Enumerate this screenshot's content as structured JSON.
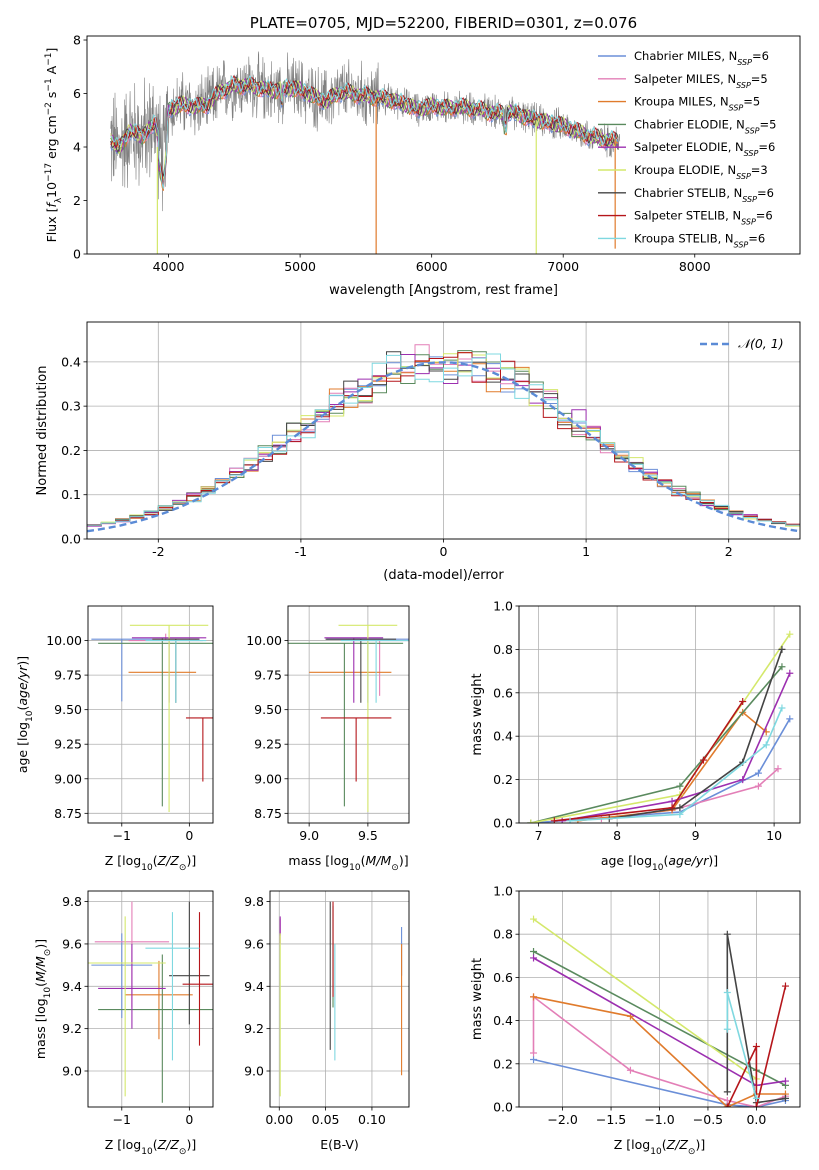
{
  "chart_data": [
    {
      "type": "line",
      "id": "spectrum",
      "title": "PLATE=0705, MJD=52200, FIBERID=0301, z=0.076",
      "xlabel": "wavelength [Angstrom, rest frame]",
      "ylabel": "Flux [f_λ 10^-17 erg cm^-2 s^-1 A^-1]",
      "ylabel_parts": [
        "Flux [",
        {
          "t": "f",
          "i": 1
        },
        {
          "t": "λ",
          "sub": 1
        },
        "10",
        {
          "t": "−17",
          "sup": 1
        },
        " erg cm",
        {
          "t": "−2",
          "sup": 1
        },
        " s",
        {
          "t": "−1",
          "sup": 1
        },
        " A",
        {
          "t": "−1",
          "sup": 1
        },
        "]"
      ],
      "xlim": [
        3380,
        8800
      ],
      "ylim": [
        0,
        8.15
      ],
      "xticks": [
        4000,
        5000,
        6000,
        7000,
        8000
      ],
      "yticks": [
        0,
        2,
        4,
        6,
        8
      ],
      "data_color": "#808080",
      "shape": [
        [
          3560,
          4.3
        ],
        [
          3620,
          3.9
        ],
        [
          3700,
          4.6
        ],
        [
          3800,
          4.4
        ],
        [
          3900,
          4.9
        ],
        [
          3960,
          3.5
        ],
        [
          4000,
          5.4
        ],
        [
          4100,
          5.6
        ],
        [
          4200,
          5.5
        ],
        [
          4300,
          5.6
        ],
        [
          4400,
          6.1
        ],
        [
          4500,
          6.3
        ],
        [
          4600,
          6.3
        ],
        [
          4700,
          6.2
        ],
        [
          4800,
          6.1
        ],
        [
          4900,
          6.2
        ],
        [
          5000,
          6.15
        ],
        [
          5100,
          5.9
        ],
        [
          5200,
          5.7
        ],
        [
          5300,
          6.05
        ],
        [
          5400,
          6.0
        ],
        [
          5500,
          5.9
        ],
        [
          5600,
          5.85
        ],
        [
          5700,
          5.75
        ],
        [
          5800,
          5.6
        ],
        [
          5900,
          5.4
        ],
        [
          6000,
          5.55
        ],
        [
          6100,
          5.45
        ],
        [
          6200,
          5.5
        ],
        [
          6300,
          5.45
        ],
        [
          6400,
          5.35
        ],
        [
          6500,
          5.25
        ],
        [
          6600,
          5.3
        ],
        [
          6700,
          5.15
        ],
        [
          6800,
          5.0
        ],
        [
          6900,
          4.9
        ],
        [
          7000,
          4.8
        ],
        [
          7100,
          4.6
        ],
        [
          7200,
          4.4
        ],
        [
          7300,
          4.3
        ],
        [
          7420,
          4.2
        ]
      ],
      "series": [
        {
          "name": "Chabrier MILES",
          "n": "6",
          "color": "#6b8fd8"
        },
        {
          "name": "Salpeter MILES",
          "n": "5",
          "color": "#e37fb7"
        },
        {
          "name": "Kroupa MILES",
          "n": "5",
          "color": "#e07b2c"
        },
        {
          "name": "Chabrier ELODIE",
          "n": "5",
          "color": "#5a8a5e"
        },
        {
          "name": "Salpeter ELODIE",
          "n": "6",
          "color": "#9c2fb0"
        },
        {
          "name": "Kroupa ELODIE",
          "n": "3",
          "color": "#d4e86b"
        },
        {
          "name": "Chabrier STELIB",
          "n": "6",
          "color": "#444444"
        },
        {
          "name": "Salpeter STELIB",
          "n": "6",
          "color": "#b5161b"
        },
        {
          "name": "Kroupa STELIB",
          "n": "6",
          "color": "#7fd8e0"
        }
      ],
      "spikes": [
        {
          "x": 3915,
          "y0": 0,
          "y1": 4,
          "color": "#d4e86b"
        },
        {
          "x": 5578,
          "y0": 0,
          "y1": 5.8,
          "color": "#e07b2c"
        },
        {
          "x": 6795,
          "y0": 0,
          "y1": 5.0,
          "color": "#d4e86b"
        },
        {
          "x": 7395,
          "y0": 0.2,
          "y1": 4.3,
          "color": "#e07b2c"
        }
      ],
      "legend_n_label": "N",
      "legend_n_sub": "SSP"
    },
    {
      "type": "step",
      "id": "residuals",
      "xlabel": "(data-model)/error",
      "ylabel": "Normed distribution",
      "xlim": [
        -2.5,
        2.5
      ],
      "ylim": [
        0,
        0.49
      ],
      "xticks": [
        -2,
        -1,
        0,
        1,
        2
      ],
      "yticks": [
        0.0,
        0.1,
        0.2,
        0.3,
        0.4
      ],
      "ytick_labels": [
        "0.0",
        "0.1",
        "0.2",
        "0.3",
        "0.4"
      ],
      "bin_width": 0.1,
      "gaussian": {
        "name": "𝒩(0, 1)",
        "color": "#5b8bd6"
      },
      "series_colors": [
        "#6b8fd8",
        "#e37fb7",
        "#e07b2c",
        "#5a8a5e",
        "#9c2fb0",
        "#d4e86b",
        "#444444",
        "#b5161b",
        "#7fd8e0"
      ]
    },
    {
      "type": "errorbar",
      "id": "age_vs_Z",
      "xlabel": "Z [log10(Z/Z_sun)]",
      "ylabel": "age [log10(age/yr)]",
      "xlim": [
        -1.5,
        0.35
      ],
      "ylim": [
        8.68,
        10.25
      ],
      "xticks": [
        -1,
        0
      ],
      "xtick_labels": [
        "−1",
        "0"
      ],
      "yticks": [
        8.75,
        9.0,
        9.25,
        9.5,
        9.75,
        10.0
      ],
      "ytick_labels": [
        "8.75",
        "9.00",
        "9.25",
        "9.50",
        "9.75",
        "10.00"
      ],
      "points": [
        {
          "x": -1.0,
          "xe": 0.45,
          "y": 10.01,
          "yl": 9.56,
          "yh": 10.01,
          "color": "#6b8fd8"
        },
        {
          "x": -0.35,
          "xe": 0.55,
          "y": 10.0,
          "yl": 10.0,
          "yh": 10.05,
          "color": "#e37fb7"
        },
        {
          "x": -0.4,
          "xe": 0.5,
          "y": 9.77,
          "yl": 9.77,
          "yh": 9.77,
          "color": "#e07b2c"
        },
        {
          "x": -0.4,
          "xe": 0.95,
          "y": 9.98,
          "yl": 8.8,
          "yh": 10.02,
          "color": "#5a8a5e"
        },
        {
          "x": -0.3,
          "xe": 0.55,
          "y": 10.02,
          "yl": 9.55,
          "yh": 10.02,
          "color": "#9c2fb0"
        },
        {
          "x": -0.3,
          "xe": 0.58,
          "y": 10.11,
          "yl": 8.76,
          "yh": 10.11,
          "color": "#d4e86b"
        },
        {
          "x": -0.2,
          "xe": 0.35,
          "y": 10.01,
          "yl": 9.55,
          "yh": 10.01,
          "color": "#444444"
        },
        {
          "x": 0.2,
          "xe": 0.25,
          "y": 9.44,
          "yl": 8.98,
          "yh": 9.44,
          "color": "#b5161b"
        },
        {
          "x": -0.2,
          "xe": 0.45,
          "y": 10.0,
          "yl": 9.55,
          "yh": 10.0,
          "color": "#7fd8e0"
        }
      ]
    },
    {
      "type": "errorbar",
      "id": "age_vs_mass",
      "xlabel": "mass [log10(M/M_sun)]",
      "ylabel": "",
      "xlim": [
        8.82,
        9.85
      ],
      "ylim": [
        8.68,
        10.25
      ],
      "xticks": [
        9.0,
        9.5
      ],
      "xtick_labels": [
        "9.0",
        "9.5"
      ],
      "yticks": [
        8.75,
        9.0,
        9.25,
        9.5,
        9.75,
        10.0
      ],
      "ytick_labels": [
        "8.75",
        "9.00",
        "9.25",
        "9.50",
        "9.75",
        "10.00"
      ],
      "points": [
        {
          "x": 9.5,
          "xe": 0.35,
          "y": 10.01,
          "yl": 9.55,
          "yh": 10.01,
          "color": "#6b8fd8"
        },
        {
          "x": 9.6,
          "xe": 0.25,
          "y": 10.0,
          "yl": 9.6,
          "yh": 10.0,
          "color": "#e37fb7"
        },
        {
          "x": 9.35,
          "xe": 0.35,
          "y": 9.77,
          "yl": 9.77,
          "yh": 9.77,
          "color": "#e07b2c"
        },
        {
          "x": 9.3,
          "xe": 0.5,
          "y": 9.98,
          "yl": 8.8,
          "yh": 9.98,
          "color": "#5a8a5e"
        },
        {
          "x": 9.38,
          "xe": 0.25,
          "y": 10.02,
          "yl": 9.55,
          "yh": 10.02,
          "color": "#9c2fb0"
        },
        {
          "x": 9.5,
          "xe": 0.25,
          "y": 10.11,
          "yl": 8.76,
          "yh": 10.11,
          "color": "#d4e86b"
        },
        {
          "x": 9.44,
          "xe": 0.3,
          "y": 10.01,
          "yl": 9.55,
          "yh": 10.01,
          "color": "#444444"
        },
        {
          "x": 9.4,
          "xe": 0.3,
          "y": 9.44,
          "yl": 8.98,
          "yh": 9.44,
          "color": "#b5161b"
        },
        {
          "x": 9.57,
          "xe": 0.3,
          "y": 10.0,
          "yl": 9.55,
          "yh": 10.0,
          "color": "#7fd8e0"
        }
      ]
    },
    {
      "type": "line",
      "id": "mass_weight_vs_age",
      "xlabel": "age [log10(age/yr)]",
      "ylabel": "mass weight",
      "xlim": [
        6.75,
        10.33
      ],
      "ylim": [
        0,
        1.0
      ],
      "xticks": [
        7,
        8,
        9,
        10
      ],
      "yticks": [
        0.0,
        0.2,
        0.4,
        0.6,
        0.8,
        1.0
      ],
      "ytick_labels": [
        "0.0",
        "0.2",
        "0.4",
        "0.6",
        "0.8",
        "1.0"
      ],
      "series": [
        {
          "color": "#6b8fd8",
          "x": [
            6.9,
            8.8,
            9.8,
            10.2
          ],
          "y": [
            0.0,
            0.05,
            0.23,
            0.48
          ]
        },
        {
          "color": "#e37fb7",
          "x": [
            7.8,
            8.7,
            9.8,
            10.05
          ],
          "y": [
            0.02,
            0.06,
            0.17,
            0.25
          ]
        },
        {
          "color": "#e07b2c",
          "x": [
            7.5,
            8.7,
            9.6,
            9.9
          ],
          "y": [
            0.01,
            0.06,
            0.51,
            0.42
          ]
        },
        {
          "color": "#5a8a5e",
          "x": [
            6.9,
            8.8,
            10.1
          ],
          "y": [
            0.0,
            0.17,
            0.72
          ]
        },
        {
          "color": "#9c2fb0",
          "x": [
            7.3,
            8.7,
            9.6,
            10.2
          ],
          "y": [
            0.01,
            0.1,
            0.2,
            0.69
          ]
        },
        {
          "color": "#d4e86b",
          "x": [
            6.9,
            8.8,
            10.2
          ],
          "y": [
            0.0,
            0.13,
            0.87
          ]
        },
        {
          "color": "#444444",
          "x": [
            7.9,
            8.8,
            9.6,
            10.1
          ],
          "y": [
            0.02,
            0.07,
            0.28,
            0.8
          ]
        },
        {
          "color": "#b5161b",
          "x": [
            7.2,
            8.7,
            9.1,
            9.6
          ],
          "y": [
            0.01,
            0.07,
            0.29,
            0.56
          ]
        },
        {
          "color": "#7fd8e0",
          "x": [
            7.4,
            8.8,
            9.9,
            10.1
          ],
          "y": [
            0.01,
            0.04,
            0.36,
            0.53
          ]
        }
      ]
    },
    {
      "type": "errorbar",
      "id": "mass_vs_Z",
      "xlabel": "Z [log10(Z/Z_sun)]",
      "ylabel": "mass [log10(M/M_sun)]",
      "xlim": [
        -1.5,
        0.35
      ],
      "ylim": [
        8.83,
        9.85
      ],
      "xticks": [
        -1,
        0
      ],
      "xtick_labels": [
        "−1",
        "0"
      ],
      "yticks": [
        9.0,
        9.2,
        9.4,
        9.6,
        9.8
      ],
      "ytick_labels": [
        "9.0",
        "9.2",
        "9.4",
        "9.6",
        "9.8"
      ],
      "points": [
        {
          "x": -1.0,
          "xe": 0.45,
          "y": 9.5,
          "yl": 9.25,
          "yh": 9.65,
          "color": "#6b8fd8"
        },
        {
          "x": -0.85,
          "xe": 0.55,
          "y": 9.61,
          "yl": 9.3,
          "yh": 9.8,
          "color": "#e37fb7"
        },
        {
          "x": -0.45,
          "xe": 0.5,
          "y": 9.36,
          "yl": 9.15,
          "yh": 9.52,
          "color": "#e07b2c"
        },
        {
          "x": -0.4,
          "xe": 0.95,
          "y": 9.29,
          "yl": 8.85,
          "yh": 9.55,
          "color": "#5a8a5e"
        },
        {
          "x": -0.85,
          "xe": 0.5,
          "y": 9.39,
          "yl": 9.2,
          "yh": 9.6,
          "color": "#9c2fb0"
        },
        {
          "x": -0.95,
          "xe": 0.6,
          "y": 9.51,
          "yl": 8.88,
          "yh": 9.73,
          "color": "#d4e86b"
        },
        {
          "x": 0.0,
          "xe": 0.3,
          "y": 9.45,
          "yl": 9.22,
          "yh": 9.8,
          "color": "#444444"
        },
        {
          "x": 0.15,
          "xe": 0.25,
          "y": 9.41,
          "yl": 9.12,
          "yh": 9.75,
          "color": "#b5161b"
        },
        {
          "x": -0.25,
          "xe": 0.4,
          "y": 9.58,
          "yl": 9.05,
          "yh": 9.75,
          "color": "#7fd8e0"
        }
      ]
    },
    {
      "type": "errorbar",
      "id": "mass_vs_EBV",
      "xlabel": "E(B-V)",
      "ylabel": "",
      "xlim": [
        -0.01,
        0.14
      ],
      "ylim": [
        8.83,
        9.85
      ],
      "xticks": [
        0.0,
        0.05,
        0.1
      ],
      "xtick_labels": [
        "0.00",
        "0.05",
        "0.10"
      ],
      "yticks": [
        9.0,
        9.2,
        9.4,
        9.6,
        9.8
      ],
      "ytick_labels": [
        "9.0",
        "9.2",
        "9.4",
        "9.6",
        "9.8"
      ],
      "points": [
        {
          "x": 0.132,
          "yl": 9.45,
          "yh": 9.68,
          "color": "#6b8fd8"
        },
        {
          "x": 0.001,
          "yl": 9.6,
          "yh": 9.72,
          "color": "#e37fb7"
        },
        {
          "x": 0.132,
          "yl": 8.98,
          "yh": 9.6,
          "color": "#e07b2c"
        },
        {
          "x": 0.058,
          "yl": 9.3,
          "yh": 9.78,
          "color": "#5a8a5e"
        },
        {
          "x": 0.001,
          "yl": 9.64,
          "yh": 9.73,
          "color": "#9c2fb0"
        },
        {
          "x": 0.001,
          "yl": 8.88,
          "yh": 9.65,
          "color": "#d4e86b"
        },
        {
          "x": 0.055,
          "yl": 9.1,
          "yh": 9.8,
          "color": "#444444"
        },
        {
          "x": 0.058,
          "yl": 9.35,
          "yh": 9.8,
          "color": "#b5161b"
        },
        {
          "x": 0.06,
          "yl": 9.05,
          "yh": 9.6,
          "color": "#7fd8e0"
        }
      ]
    },
    {
      "type": "line",
      "id": "mass_weight_vs_Z",
      "xlabel": "Z [log10(Z/Z_sun)]",
      "ylabel": "mass weight",
      "xlim": [
        -2.45,
        0.45
      ],
      "ylim": [
        0,
        1.0
      ],
      "xticks": [
        -2.0,
        -1.5,
        -1.0,
        -0.5,
        0.0
      ],
      "xtick_labels": [
        "−2.0",
        "−1.5",
        "−1.0",
        "−0.5",
        "0.0"
      ],
      "yticks": [
        0.0,
        0.2,
        0.4,
        0.6,
        0.8,
        1.0
      ],
      "ytick_labels": [
        "0.0",
        "0.2",
        "0.4",
        "0.6",
        "0.8",
        "1.0"
      ],
      "series": [
        {
          "color": "#6b8fd8",
          "x": [
            -2.3,
            -0.3,
            0.0,
            0.3
          ],
          "y": [
            0.22,
            0.01,
            0.0,
            0.03
          ]
        },
        {
          "color": "#e37fb7",
          "x": [
            -2.3,
            -2.3,
            -1.3,
            -0.3,
            0.0,
            0.3
          ],
          "y": [
            0.25,
            0.51,
            0.17,
            0.03,
            0.0,
            0.05
          ]
        },
        {
          "color": "#e07b2c",
          "x": [
            -2.3,
            -1.3,
            -0.3,
            0.0,
            0.3
          ],
          "y": [
            0.51,
            0.42,
            0.0,
            0.06,
            0.06
          ]
        },
        {
          "color": "#5a8a5e",
          "x": [
            -2.3,
            0.0,
            0.3
          ],
          "y": [
            0.72,
            0.17,
            0.1
          ]
        },
        {
          "color": "#9c2fb0",
          "x": [
            -2.3,
            0.0,
            0.3
          ],
          "y": [
            0.69,
            0.1,
            0.12
          ]
        },
        {
          "color": "#d4e86b",
          "x": [
            -2.3,
            0.0
          ],
          "y": [
            0.87,
            0.13
          ]
        },
        {
          "color": "#444444",
          "x": [
            -0.3,
            -0.3,
            0.0,
            0.3
          ],
          "y": [
            0.07,
            0.8,
            0.02,
            0.04
          ]
        },
        {
          "color": "#b5161b",
          "x": [
            -0.3,
            0.0,
            0.0,
            0.3
          ],
          "y": [
            0.0,
            0.28,
            0.0,
            0.56
          ]
        },
        {
          "color": "#7fd8e0",
          "x": [
            -0.3,
            -0.3,
            0.0
          ],
          "y": [
            0.36,
            0.53,
            0.04
          ]
        }
      ]
    }
  ]
}
